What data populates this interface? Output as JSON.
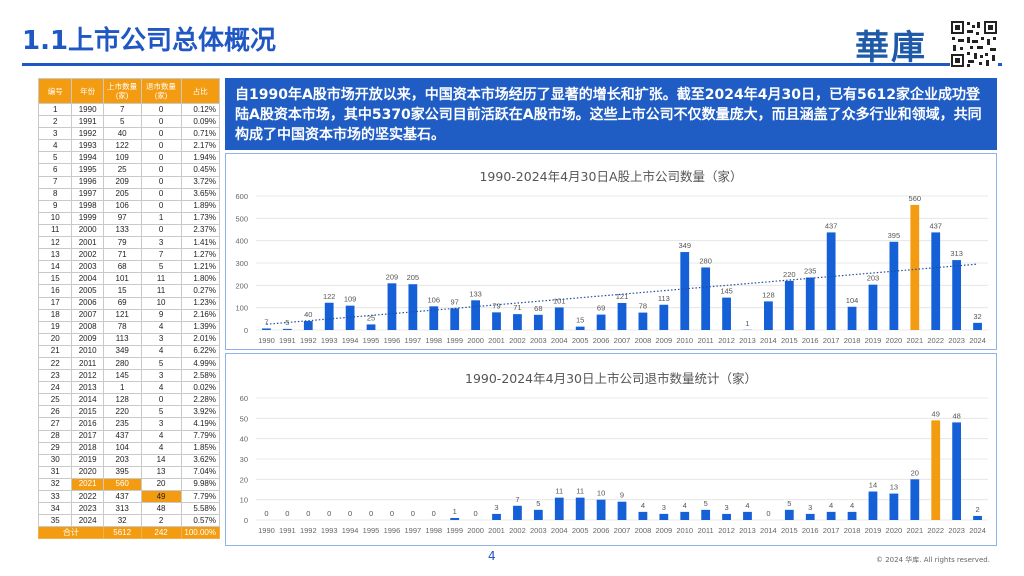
{
  "page": {
    "title": "1.1上市公司总体概况",
    "brand": "華庫",
    "intro": "自1990年A股市场开放以来，中国资本市场经历了显著的增长和扩张。截至2024年4月30日，已有5612家企业成功登陆A股资本市场，其中5370家公司目前活跃在A股市场。这些上市公司不仅数量庞大，而且涵盖了众多行业和领域，共同构成了中国资本市场的坚实基石。",
    "page_number": "4",
    "copyright": "© 2024 华库. All rights reserved."
  },
  "table": {
    "headers": [
      "编号",
      "年份",
      "上市数量\n(家)",
      "退市数量\n(家)",
      "占比"
    ],
    "rows": [
      [
        "1",
        "1990",
        "7",
        "0",
        "0.12%"
      ],
      [
        "2",
        "1991",
        "5",
        "0",
        "0.09%"
      ],
      [
        "3",
        "1992",
        "40",
        "0",
        "0.71%"
      ],
      [
        "4",
        "1993",
        "122",
        "0",
        "2.17%"
      ],
      [
        "5",
        "1994",
        "109",
        "0",
        "1.94%"
      ],
      [
        "6",
        "1995",
        "25",
        "0",
        "0.45%"
      ],
      [
        "7",
        "1996",
        "209",
        "0",
        "3.72%"
      ],
      [
        "8",
        "1997",
        "205",
        "0",
        "3.65%"
      ],
      [
        "9",
        "1998",
        "106",
        "0",
        "1.89%"
      ],
      [
        "10",
        "1999",
        "97",
        "1",
        "1.73%"
      ],
      [
        "11",
        "2000",
        "133",
        "0",
        "2.37%"
      ],
      [
        "12",
        "2001",
        "79",
        "3",
        "1.41%"
      ],
      [
        "13",
        "2002",
        "71",
        "7",
        "1.27%"
      ],
      [
        "14",
        "2003",
        "68",
        "5",
        "1.21%"
      ],
      [
        "15",
        "2004",
        "101",
        "11",
        "1.80%"
      ],
      [
        "16",
        "2005",
        "15",
        "11",
        "0.27%"
      ],
      [
        "17",
        "2006",
        "69",
        "10",
        "1.23%"
      ],
      [
        "18",
        "2007",
        "121",
        "9",
        "2.16%"
      ],
      [
        "19",
        "2008",
        "78",
        "4",
        "1.39%"
      ],
      [
        "20",
        "2009",
        "113",
        "3",
        "2.01%"
      ],
      [
        "21",
        "2010",
        "349",
        "4",
        "6.22%"
      ],
      [
        "22",
        "2011",
        "280",
        "5",
        "4.99%"
      ],
      [
        "23",
        "2012",
        "145",
        "3",
        "2.58%"
      ],
      [
        "24",
        "2013",
        "1",
        "4",
        "0.02%"
      ],
      [
        "25",
        "2014",
        "128",
        "0",
        "2.28%"
      ],
      [
        "26",
        "2015",
        "220",
        "5",
        "3.92%"
      ],
      [
        "27",
        "2016",
        "235",
        "3",
        "4.19%"
      ],
      [
        "28",
        "2017",
        "437",
        "4",
        "7.79%"
      ],
      [
        "29",
        "2018",
        "104",
        "4",
        "1.85%"
      ],
      [
        "30",
        "2019",
        "203",
        "14",
        "3.62%"
      ],
      [
        "31",
        "2020",
        "395",
        "13",
        "7.04%"
      ],
      [
        "32",
        "2021",
        "560",
        "20",
        "9.98%"
      ],
      [
        "33",
        "2022",
        "437",
        "49",
        "7.79%"
      ],
      [
        "34",
        "2023",
        "313",
        "48",
        "5.58%"
      ],
      [
        "35",
        "2024",
        "32",
        "2",
        "0.57%"
      ]
    ],
    "total": [
      "合计",
      "5612",
      "242",
      "100.00%"
    ]
  },
  "chart_data": [
    {
      "type": "bar",
      "title": "1990-2024年4月30日A股上市公司数量（家）",
      "categories": [
        "1990",
        "1991",
        "1992",
        "1993",
        "1994",
        "1995",
        "1996",
        "1997",
        "1998",
        "1999",
        "2000",
        "2001",
        "2002",
        "2003",
        "2004",
        "2005",
        "2006",
        "2007",
        "2008",
        "2009",
        "2010",
        "2011",
        "2012",
        "2013",
        "2014",
        "2015",
        "2016",
        "2017",
        "2018",
        "2019",
        "2020",
        "2021",
        "2022",
        "2023",
        "2024"
      ],
      "values": [
        7,
        5,
        40,
        122,
        109,
        25,
        209,
        205,
        106,
        97,
        133,
        79,
        71,
        68,
        101,
        15,
        69,
        121,
        78,
        113,
        349,
        280,
        145,
        1,
        128,
        220,
        235,
        437,
        104,
        203,
        395,
        560,
        437,
        313,
        32
      ],
      "ylim": [
        0,
        600
      ],
      "yticks": [
        0,
        100,
        200,
        300,
        400,
        500,
        600
      ],
      "highlight": "2021",
      "trendline": true,
      "colors": {
        "bar": "#1560d6",
        "highlight": "#f39c12",
        "trend": "#1f4e9e"
      }
    },
    {
      "type": "bar",
      "title": "1990-2024年4月30日上市公司退市数量统计（家）",
      "categories": [
        "1990",
        "1991",
        "1992",
        "1993",
        "1994",
        "1995",
        "1996",
        "1997",
        "1998",
        "1999",
        "2000",
        "2001",
        "2002",
        "2003",
        "2004",
        "2005",
        "2006",
        "2007",
        "2008",
        "2009",
        "2010",
        "2011",
        "2012",
        "2013",
        "2014",
        "2015",
        "2016",
        "2017",
        "2018",
        "2019",
        "2020",
        "2021",
        "2022",
        "2023",
        "2024"
      ],
      "values": [
        0,
        0,
        0,
        0,
        0,
        0,
        0,
        0,
        0,
        1,
        0,
        3,
        7,
        5,
        11,
        11,
        10,
        9,
        4,
        3,
        4,
        5,
        3,
        4,
        0,
        5,
        3,
        4,
        4,
        14,
        13,
        20,
        49,
        48,
        2
      ],
      "ylim": [
        0,
        60
      ],
      "yticks": [
        0,
        10,
        20,
        30,
        40,
        50,
        60
      ],
      "highlight": "2022",
      "colors": {
        "bar": "#1560d6",
        "highlight": "#f39c12"
      }
    }
  ]
}
